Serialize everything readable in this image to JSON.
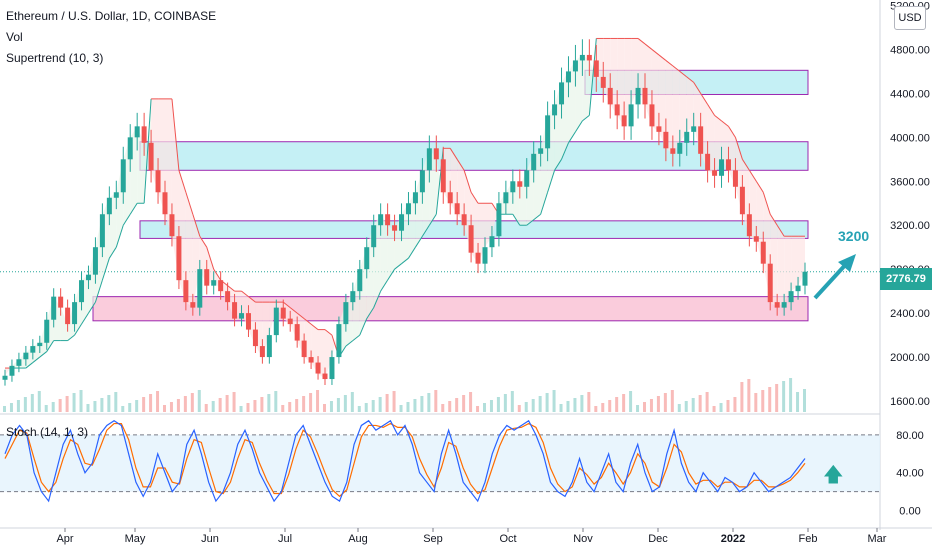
{
  "header": {
    "symbol_title": "Ethereum / U.S. Dollar, 1D, COINBASE",
    "indicator_vol": "Vol",
    "indicator_supertrend": "Supertrend (10, 3)",
    "indicator_stoch": "Stoch (14, 1, 3)"
  },
  "currency_button": "USD",
  "last_price": "2776.79",
  "target_label": "3200",
  "colors": {
    "up": "#26a69a",
    "down": "#ef5350",
    "cyan_zone": "#b2ebf2",
    "pink_zone": "#f8bbd0",
    "zone_border": "#9c27b0",
    "stoch_k": "#2962ff",
    "stoch_d": "#ff6d00",
    "accent": "#26a2b4"
  },
  "chart_data": [
    {
      "type": "candlestick",
      "title": "Ethereum / U.S. Dollar, 1D, COINBASE",
      "x_ticks": [
        "Apr",
        "May",
        "Jun",
        "Jul",
        "Aug",
        "Sep",
        "Oct",
        "Nov",
        "Dec",
        "2022",
        "Feb",
        "Mar"
      ],
      "y_ticks": [
        "1600.00",
        "2000.00",
        "2400.00",
        "2800.00",
        "3200.00",
        "3600.00",
        "4000.00",
        "4400.00",
        "4800.00",
        "5200.00"
      ],
      "ylim": [
        1500,
        5250
      ],
      "zones": [
        {
          "low": 4390,
          "high": 4610,
          "x_start": "Nov",
          "x_end": "Feb",
          "fill": "cyan"
        },
        {
          "low": 3700,
          "high": 3960,
          "x_start": "May",
          "x_end": "Feb",
          "fill": "cyan"
        },
        {
          "low": 3080,
          "high": 3240,
          "x_start": "May",
          "x_end": "Feb",
          "fill": "cyan"
        },
        {
          "low": 2330,
          "high": 2550,
          "x_start": "Apr",
          "x_end": "Feb",
          "fill": "pink"
        }
      ],
      "series": [
        {
          "name": "Price",
          "close": [
            1830,
            1920,
            1980,
            2040,
            2100,
            2130,
            2340,
            2550,
            2450,
            2300,
            2500,
            2700,
            2750,
            3000,
            3300,
            3450,
            3500,
            3800,
            4000,
            4100,
            3950,
            3700,
            3500,
            3300,
            3100,
            2700,
            2500,
            2450,
            2800,
            2650,
            2700,
            2600,
            2500,
            2350,
            2400,
            2250,
            2100,
            2000,
            2200,
            2450,
            2350,
            2300,
            2150,
            2000,
            1950,
            1850,
            1800,
            2000,
            2300,
            2500,
            2600,
            2800,
            3000,
            3200,
            3300,
            3200,
            3150,
            3300,
            3400,
            3500,
            3700,
            3900,
            3800,
            3500,
            3400,
            3300,
            3200,
            2950,
            2850,
            3000,
            3100,
            3400,
            3500,
            3600,
            3550,
            3700,
            3850,
            3900,
            4200,
            4300,
            4500,
            4600,
            4700,
            4750,
            4700,
            4550,
            4450,
            4300,
            4200,
            4100,
            4300,
            4450,
            4300,
            4100,
            4050,
            3900,
            3850,
            3950,
            4050,
            4100,
            3850,
            3700,
            3650,
            3800,
            3700,
            3550,
            3300,
            3100,
            3050,
            2850,
            2500,
            2450,
            2500,
            2600,
            2650,
            2776.79
          ]
        },
        {
          "name": "Supertrend",
          "values": [
            1900,
            1900,
            1900,
            1900,
            1950,
            2000,
            2050,
            2150,
            2150,
            2150,
            2200,
            2300,
            2400,
            2500,
            2700,
            2900,
            3000,
            3200,
            3300,
            3400,
            3400,
            4350,
            4350,
            4350,
            4350,
            3700,
            3500,
            3300,
            3100,
            3000,
            2800,
            2700,
            2650,
            2600,
            2600,
            2550,
            2500,
            2500,
            2500,
            2500,
            2500,
            2450,
            2400,
            2350,
            2300,
            2250,
            2250,
            2200,
            2000,
            2100,
            2150,
            2200,
            2350,
            2450,
            2600,
            2700,
            2800,
            2850,
            2900,
            3000,
            3100,
            3200,
            3300,
            3900,
            3900,
            3800,
            3700,
            3500,
            3400,
            3400,
            3400,
            3300,
            3300,
            3300,
            3200,
            3200,
            3250,
            3300,
            3500,
            3700,
            3800,
            3950,
            4050,
            4150,
            4200,
            4900,
            4900,
            4900,
            4900,
            4900,
            4900,
            4900,
            4850,
            4800,
            4750,
            4700,
            4650,
            4600,
            4550,
            4500,
            4400,
            4300,
            4200,
            4150,
            4100,
            4000,
            3800,
            3700,
            3600,
            3500,
            3300,
            3200,
            3100,
            3100,
            3100,
            3100
          ]
        }
      ]
    },
    {
      "type": "line",
      "title": "Stoch (14, 1, 3)",
      "y_ticks": [
        "0.00",
        "40.00",
        "80.00"
      ],
      "ylim": [
        -10,
        100
      ],
      "bands": [
        20,
        80
      ],
      "series": [
        {
          "name": "%K",
          "values": [
            60,
            80,
            90,
            80,
            40,
            20,
            10,
            40,
            70,
            85,
            60,
            40,
            50,
            80,
            90,
            95,
            90,
            60,
            30,
            15,
            30,
            60,
            40,
            20,
            30,
            70,
            85,
            60,
            30,
            10,
            20,
            40,
            70,
            85,
            65,
            40,
            25,
            10,
            20,
            50,
            80,
            90,
            70,
            50,
            30,
            15,
            10,
            30,
            70,
            90,
            95,
            85,
            90,
            95,
            80,
            90,
            70,
            40,
            30,
            20,
            60,
            85,
            60,
            30,
            20,
            10,
            30,
            60,
            80,
            90,
            85,
            90,
            95,
            80,
            60,
            30,
            20,
            15,
            30,
            55,
            30,
            20,
            40,
            60,
            30,
            20,
            50,
            70,
            40,
            20,
            25,
            60,
            85,
            50,
            30,
            20,
            40,
            30,
            20,
            35,
            30,
            20,
            25,
            40,
            30,
            20,
            25,
            30,
            35,
            45,
            55
          ]
        },
        {
          "name": "%D",
          "values": [
            55,
            70,
            85,
            82,
            55,
            30,
            20,
            30,
            55,
            75,
            70,
            50,
            48,
            65,
            85,
            92,
            92,
            75,
            45,
            25,
            25,
            45,
            45,
            30,
            28,
            55,
            75,
            72,
            45,
            20,
            18,
            30,
            55,
            75,
            72,
            50,
            32,
            18,
            18,
            38,
            65,
            85,
            78,
            60,
            40,
            22,
            15,
            22,
            50,
            78,
            90,
            90,
            88,
            92,
            88,
            88,
            78,
            55,
            38,
            25,
            45,
            72,
            68,
            45,
            28,
            18,
            22,
            45,
            68,
            85,
            87,
            88,
            92,
            88,
            72,
            45,
            28,
            20,
            25,
            45,
            38,
            28,
            35,
            50,
            40,
            28,
            40,
            60,
            50,
            30,
            25,
            45,
            70,
            62,
            40,
            28,
            32,
            32,
            25,
            30,
            30,
            25,
            25,
            32,
            32,
            25,
            25,
            28,
            32,
            40,
            50
          ]
        }
      ]
    }
  ]
}
